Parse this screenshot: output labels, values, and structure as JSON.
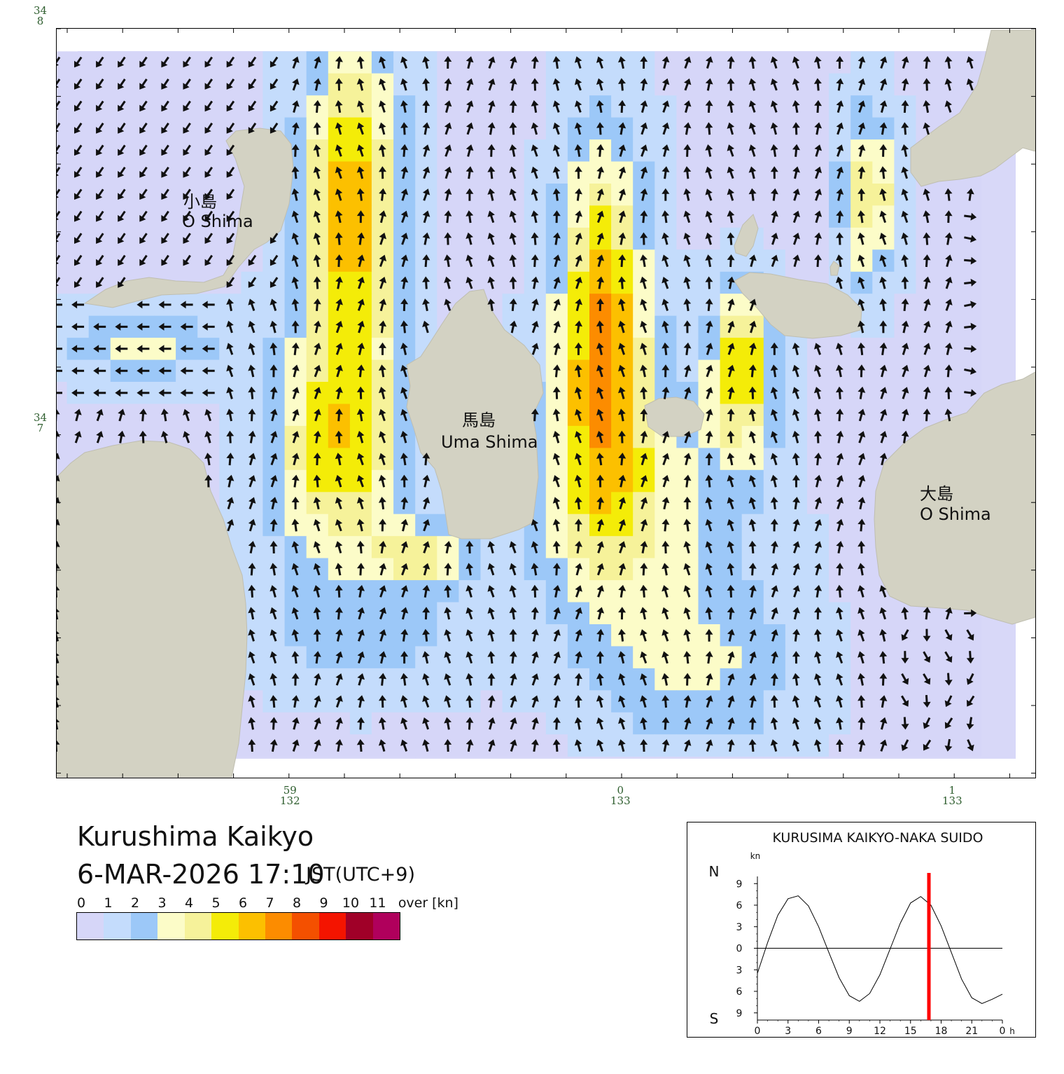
{
  "map": {
    "title": "Kurushima Kaikyo",
    "datetime": "6-MAR-2026 17:10",
    "timezone": "JST(UTC+9)",
    "islands": [
      {
        "ja": "小島",
        "en": "O Shima"
      },
      {
        "ja": "馬島",
        "en": "Uma Shima"
      },
      {
        "ja": "大島",
        "en": "O Shima"
      }
    ],
    "lat_labels": [
      {
        "deg": "34",
        "min": "8"
      },
      {
        "deg": "34",
        "min": "7"
      }
    ],
    "lon_labels": [
      {
        "min": "59",
        "deg": "132"
      },
      {
        "min": "0",
        "deg": "133"
      },
      {
        "min": "1",
        "deg": "133"
      }
    ],
    "colors": {
      "land": "#d3d2c3",
      "sea": "#d8d8f8",
      "arrow": "#111111"
    }
  },
  "legend": {
    "ticks": [
      "0",
      "1",
      "2",
      "3",
      "4",
      "5",
      "6",
      "7",
      "8",
      "9",
      "10",
      "11"
    ],
    "over_label": "over",
    "unit": "[kn]",
    "colors": [
      "#d6d6f8",
      "#c4dcfc",
      "#9cc8f8",
      "#fcfcc8",
      "#f6f29a",
      "#f4ec08",
      "#fcc000",
      "#fc8c00",
      "#f45000",
      "#f41400",
      "#a00028",
      "#b0005c"
    ]
  },
  "tide_chart": {
    "chart_data": {
      "type": "line",
      "title": "KURUSIMA KAIKYO-NAKA SUIDO",
      "ylabel": "kn",
      "y_top_label": "N",
      "y_bottom_label": "S",
      "xlim": [
        0,
        24
      ],
      "ylim": [
        -10,
        10
      ],
      "x_ticks": [
        "0",
        "3",
        "6",
        "9",
        "12",
        "15",
        "18",
        "21",
        "0"
      ],
      "x_unit": "h",
      "y_ticks": [
        {
          "value": 9,
          "label": "9"
        },
        {
          "value": 6,
          "label": "6"
        },
        {
          "value": 3,
          "label": "3"
        },
        {
          "value": 0,
          "label": "0"
        },
        {
          "value": -3,
          "label": "3"
        },
        {
          "value": -6,
          "label": "6"
        },
        {
          "value": -9,
          "label": "9"
        }
      ],
      "series": [
        {
          "x": [
            0,
            1,
            2,
            3,
            4,
            5,
            6,
            7,
            8,
            9,
            10,
            11,
            12,
            13,
            14,
            15,
            16,
            17,
            18,
            19,
            20,
            21,
            22,
            23,
            24
          ],
          "values": [
            -3.5,
            0.8,
            4.6,
            6.9,
            7.3,
            5.9,
            3.0,
            -0.6,
            -4.1,
            -6.6,
            -7.4,
            -6.3,
            -3.7,
            -0.1,
            3.5,
            6.3,
            7.2,
            6.0,
            3.1,
            -0.6,
            -4.3,
            -6.9,
            -7.7,
            -7.1,
            -6.4
          ]
        }
      ],
      "current_time": 16.8,
      "current_color": "#ff0000"
    }
  }
}
